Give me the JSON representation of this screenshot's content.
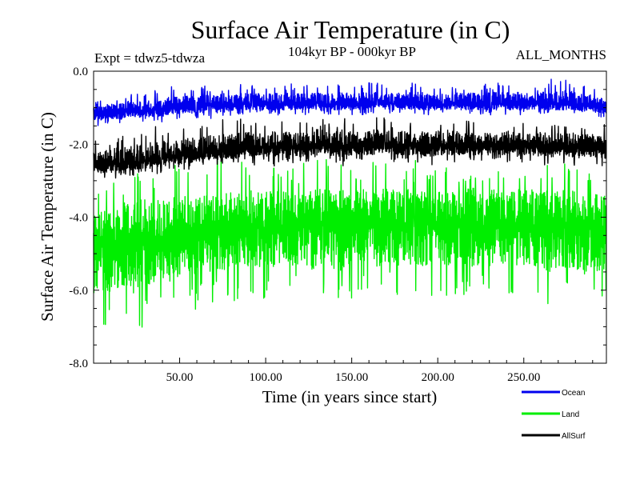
{
  "chart_data": {
    "type": "line",
    "title": "Surface Air Temperature (in C)",
    "subtitle": "104kyr BP - 000kyr BP",
    "experiment": "Expt = tdwz5-tdwza",
    "season": "ALL_MONTHS",
    "xlabel": "Time (in years since start)",
    "ylabel": "Surface Air Temperature (in C)",
    "xlim": [
      0,
      298
    ],
    "ylim": [
      -8.0,
      0.0
    ],
    "x_ticks": [
      50,
      100,
      150,
      200,
      250
    ],
    "x_tick_labels": [
      "50.00",
      "100.00",
      "150.00",
      "200.00",
      "250.00"
    ],
    "y_ticks": [
      0,
      -2,
      -4,
      -6,
      -8
    ],
    "y_tick_labels": [
      "0.0",
      "-2.0",
      "-4.0",
      "-6.0",
      "-8.0"
    ],
    "legend_position": "bottom-right",
    "series": [
      {
        "name": "Land",
        "color": "#00ee00",
        "x": [
          1,
          5,
          10,
          15,
          20,
          25,
          30,
          35,
          40,
          45,
          50,
          55,
          60,
          65,
          70,
          75,
          80,
          85,
          90,
          95,
          100,
          105,
          110,
          115,
          120,
          125,
          130,
          135,
          140,
          145,
          150,
          155,
          160,
          165,
          170,
          175,
          180,
          185,
          190,
          195,
          200,
          205,
          210,
          215,
          220,
          225,
          230,
          235,
          240,
          245,
          250,
          255,
          260,
          265,
          270,
          275,
          280,
          285,
          290,
          295,
          298
        ],
        "mean": [
          -4.7,
          -4.8,
          -4.8,
          -4.75,
          -4.7,
          -4.7,
          -4.65,
          -4.6,
          -4.55,
          -4.5,
          -4.5,
          -4.45,
          -4.45,
          -4.4,
          -4.4,
          -4.4,
          -4.35,
          -4.35,
          -4.3,
          -4.3,
          -4.3,
          -4.3,
          -4.25,
          -4.25,
          -4.3,
          -4.25,
          -4.2,
          -4.25,
          -4.25,
          -4.2,
          -4.25,
          -4.25,
          -4.2,
          -4.2,
          -4.2,
          -4.2,
          -4.25,
          -4.2,
          -4.25,
          -4.2,
          -4.2,
          -4.25,
          -4.25,
          -4.2,
          -4.2,
          -4.25,
          -4.2,
          -4.25,
          -4.25,
          -4.2,
          -4.2,
          -4.25,
          -4.3,
          -4.25,
          -4.2,
          -4.25,
          -4.3,
          -4.3,
          -4.3,
          -4.3,
          -4.3
        ],
        "max": [
          -3.1,
          -3.0,
          -2.9,
          -2.8,
          -2.6,
          -2.7,
          -2.4,
          -2.6,
          -2.5,
          -2.7,
          -2.4,
          -2.6,
          -2.5,
          -2.4,
          -2.5,
          -2.3,
          -2.4,
          -2.5,
          -2.3,
          -2.5,
          -2.4,
          -2.5,
          -2.3,
          -2.6,
          -2.4,
          -2.5,
          -2.4,
          -2.3,
          -2.5,
          -2.4,
          -2.6,
          -2.4,
          -2.3,
          -2.5,
          -2.4,
          -2.5,
          -2.4,
          -2.4,
          -2.5,
          -2.6,
          -2.4,
          -2.5,
          -2.5,
          -2.4,
          -2.3,
          -2.5,
          -2.5,
          -2.4,
          -2.6,
          -2.4,
          -2.5,
          -2.3,
          -2.4,
          -2.5,
          -2.5,
          -2.4,
          -2.5,
          -2.4,
          -2.6,
          -2.6,
          -2.7
        ],
        "min": [
          -7.2,
          -7.4,
          -7.0,
          -6.9,
          -6.9,
          -7.4,
          -7.0,
          -6.8,
          -6.6,
          -6.8,
          -6.6,
          -6.5,
          -6.6,
          -6.4,
          -6.5,
          -6.3,
          -6.5,
          -6.2,
          -6.4,
          -6.3,
          -6.4,
          -6.2,
          -6.3,
          -6.4,
          -6.2,
          -6.5,
          -6.3,
          -6.1,
          -6.4,
          -6.7,
          -6.3,
          -6.2,
          -6.2,
          -6.3,
          -6.1,
          -6.2,
          -6.4,
          -6.2,
          -6.2,
          -6.3,
          -6.1,
          -6.2,
          -6.3,
          -6.3,
          -6.3,
          -6.2,
          -6.3,
          -6.2,
          -6.1,
          -6.2,
          -6.3,
          -6.2,
          -6.4,
          -6.7,
          -6.3,
          -6.3,
          -6.4,
          -6.6,
          -6.5,
          -6.5,
          -6.4
        ]
      },
      {
        "name": "AllSurf",
        "color": "#000000",
        "x": [
          1,
          5,
          10,
          15,
          20,
          25,
          30,
          35,
          40,
          45,
          50,
          55,
          60,
          65,
          70,
          75,
          80,
          85,
          90,
          95,
          100,
          105,
          110,
          115,
          120,
          125,
          130,
          135,
          140,
          145,
          150,
          155,
          160,
          165,
          170,
          175,
          180,
          185,
          190,
          195,
          200,
          205,
          210,
          215,
          220,
          225,
          230,
          235,
          240,
          245,
          250,
          255,
          260,
          265,
          270,
          275,
          280,
          285,
          290,
          295,
          298
        ],
        "mean": [
          -2.6,
          -2.6,
          -2.55,
          -2.55,
          -2.5,
          -2.5,
          -2.45,
          -2.4,
          -2.4,
          -2.35,
          -2.3,
          -2.3,
          -2.25,
          -2.2,
          -2.2,
          -2.2,
          -2.15,
          -2.15,
          -2.1,
          -2.1,
          -2.1,
          -2.1,
          -2.05,
          -2.05,
          -2.1,
          -2.05,
          -2.05,
          -2.05,
          -2.1,
          -2.05,
          -2.05,
          -2.05,
          -2.05,
          -2.0,
          -2.05,
          -2.05,
          -2.05,
          -2.05,
          -2.05,
          -2.05,
          -2.05,
          -2.05,
          -2.05,
          -2.05,
          -2.05,
          -2.05,
          -2.05,
          -2.05,
          -2.05,
          -2.05,
          -2.05,
          -2.05,
          -2.1,
          -2.1,
          -2.05,
          -2.1,
          -2.1,
          -2.1,
          -2.1,
          -2.1,
          -2.15
        ],
        "max": [
          -1.9,
          -1.8,
          -1.8,
          -1.7,
          -1.7,
          -1.6,
          -1.6,
          -1.5,
          -1.5,
          -1.6,
          -1.5,
          -1.4,
          -1.5,
          -1.4,
          -1.4,
          -1.3,
          -1.4,
          -1.3,
          -1.3,
          -1.4,
          -1.3,
          -1.3,
          -1.3,
          -1.4,
          -1.3,
          -1.4,
          -1.2,
          -1.3,
          -1.3,
          -1.2,
          -1.3,
          -1.4,
          -1.3,
          -1.2,
          -1.3,
          -1.3,
          -1.3,
          -1.3,
          -1.3,
          -1.4,
          -1.3,
          -1.2,
          -1.3,
          -1.3,
          -1.3,
          -1.4,
          -1.3,
          -1.4,
          -1.3,
          -1.3,
          -1.3,
          -1.3,
          -1.3,
          -1.4,
          -1.3,
          -1.4,
          -1.3,
          -1.4,
          -1.4,
          -1.4,
          -1.5
        ],
        "min": [
          -3.0,
          -3.0,
          -3.0,
          -2.9,
          -2.9,
          -2.9,
          -2.8,
          -2.9,
          -2.8,
          -2.7,
          -2.8,
          -2.7,
          -2.7,
          -2.6,
          -2.7,
          -2.6,
          -2.6,
          -2.6,
          -2.5,
          -2.6,
          -2.5,
          -2.6,
          -2.5,
          -2.5,
          -2.6,
          -2.5,
          -2.5,
          -2.5,
          -2.5,
          -2.6,
          -2.5,
          -2.5,
          -2.5,
          -2.5,
          -2.4,
          -2.5,
          -2.5,
          -2.5,
          -2.5,
          -2.6,
          -2.5,
          -2.5,
          -2.5,
          -2.5,
          -2.5,
          -2.5,
          -2.5,
          -2.5,
          -2.5,
          -2.6,
          -2.5,
          -2.5,
          -2.6,
          -2.6,
          -2.5,
          -2.6,
          -2.6,
          -2.6,
          -2.6,
          -2.6,
          -2.6
        ]
      },
      {
        "name": "Ocean",
        "color": "#0000ee",
        "x": [
          1,
          5,
          10,
          15,
          20,
          25,
          30,
          35,
          40,
          45,
          50,
          55,
          60,
          65,
          70,
          75,
          80,
          85,
          90,
          95,
          100,
          105,
          110,
          115,
          120,
          125,
          130,
          135,
          140,
          145,
          150,
          155,
          160,
          165,
          170,
          175,
          180,
          185,
          190,
          195,
          200,
          205,
          210,
          215,
          220,
          225,
          230,
          235,
          240,
          245,
          250,
          255,
          260,
          265,
          270,
          275,
          280,
          285,
          290,
          295,
          298
        ],
        "mean": [
          -1.2,
          -1.2,
          -1.15,
          -1.15,
          -1.1,
          -1.1,
          -1.1,
          -1.05,
          -1.05,
          -1.0,
          -1.0,
          -1.0,
          -1.0,
          -0.95,
          -0.95,
          -0.95,
          -0.95,
          -0.9,
          -0.9,
          -0.9,
          -0.9,
          -0.9,
          -0.9,
          -0.9,
          -0.9,
          -0.9,
          -0.85,
          -0.9,
          -0.9,
          -0.9,
          -0.9,
          -0.9,
          -0.9,
          -0.85,
          -0.9,
          -0.85,
          -0.9,
          -0.9,
          -0.9,
          -0.9,
          -0.9,
          -0.9,
          -0.9,
          -0.9,
          -0.9,
          -0.9,
          -0.9,
          -0.9,
          -0.9,
          -0.9,
          -0.9,
          -0.9,
          -0.9,
          -0.9,
          -0.9,
          -0.9,
          -0.9,
          -0.95,
          -0.95,
          -1.0,
          -1.0
        ],
        "max": [
          -0.8,
          -0.7,
          -0.7,
          -0.7,
          -0.6,
          -0.6,
          -0.6,
          -0.5,
          -0.6,
          -0.4,
          -0.5,
          -0.4,
          -0.5,
          -0.4,
          -0.4,
          -0.5,
          -0.4,
          -0.3,
          -0.4,
          -0.3,
          -0.4,
          -0.3,
          -0.4,
          -0.3,
          -0.4,
          -0.3,
          -0.3,
          -0.4,
          -0.3,
          -0.3,
          -0.4,
          -0.3,
          -0.3,
          -0.3,
          -0.4,
          -0.3,
          -0.4,
          -0.3,
          -0.3,
          -0.3,
          -0.4,
          -0.3,
          -0.3,
          -0.4,
          -0.3,
          -0.4,
          -0.3,
          -0.3,
          -0.3,
          -0.3,
          -0.3,
          -0.4,
          -0.3,
          -0.2,
          -0.3,
          -0.2,
          -0.3,
          -0.4,
          -0.4,
          -0.5,
          -0.5
        ],
        "min": [
          -1.5,
          -1.5,
          -1.4,
          -1.5,
          -1.4,
          -1.4,
          -1.4,
          -1.4,
          -1.4,
          -1.3,
          -1.3,
          -1.3,
          -1.3,
          -1.3,
          -1.3,
          -1.3,
          -1.2,
          -1.2,
          -1.2,
          -1.3,
          -1.2,
          -1.2,
          -1.2,
          -1.2,
          -1.2,
          -1.2,
          -1.1,
          -1.2,
          -1.2,
          -1.2,
          -1.2,
          -1.2,
          -1.2,
          -1.1,
          -1.2,
          -1.1,
          -1.2,
          -1.2,
          -1.2,
          -1.2,
          -1.2,
          -1.2,
          -1.2,
          -1.2,
          -1.2,
          -1.2,
          -1.2,
          -1.2,
          -1.2,
          -1.2,
          -1.2,
          -1.2,
          -1.2,
          -1.2,
          -1.2,
          -1.2,
          -1.2,
          -1.3,
          -1.3,
          -1.3,
          -1.3
        ]
      }
    ]
  }
}
